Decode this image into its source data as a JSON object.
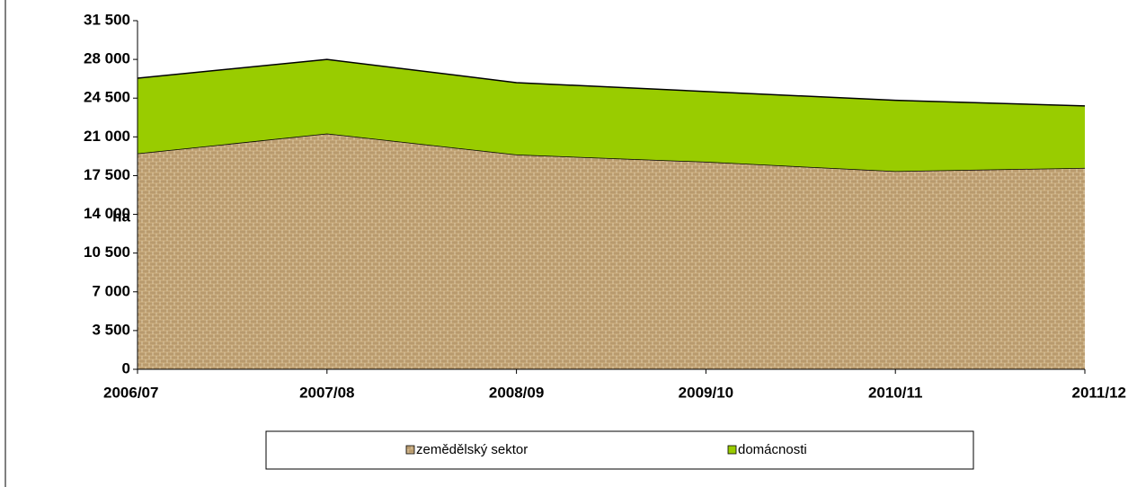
{
  "chart_data": {
    "type": "stacked_area",
    "y_label": "ha",
    "categories": [
      "2006/07",
      "2007/08",
      "2008/09",
      "2009/10",
      "2010/11",
      "2011/12"
    ],
    "series": [
      {
        "name": "zemědělský sektor",
        "color": "#c4a678",
        "values": [
          19500,
          21300,
          19400,
          18750,
          17900,
          18200
        ]
      },
      {
        "name": "domácnosti",
        "color": "#99cc00",
        "values": [
          6800,
          6700,
          6500,
          6350,
          6400,
          5600
        ]
      }
    ],
    "ylim": [
      0,
      31500
    ],
    "yticks": [
      0,
      {
        "value": 3500,
        "label": "3 500"
      },
      {
        "value": 7000,
        "label": "7 000"
      },
      {
        "value": 10500,
        "label": "10 500"
      },
      {
        "value": 14000,
        "label": "14 000"
      },
      {
        "value": 17500,
        "label": "17 500"
      },
      {
        "value": 21000,
        "label": "21 000"
      },
      {
        "value": 24500,
        "label": "24 500"
      },
      {
        "value": 28000,
        "label": "28 000"
      },
      {
        "value": 31500,
        "label": "31 500"
      }
    ]
  }
}
